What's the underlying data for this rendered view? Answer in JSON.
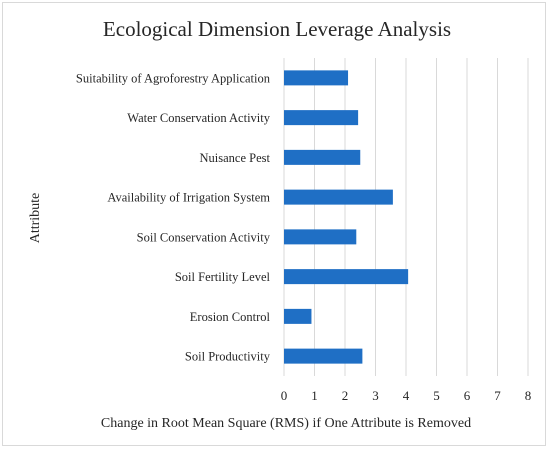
{
  "chart_data": {
    "type": "bar",
    "orientation": "horizontal",
    "title": "Ecological Dimension Leverage Analysis",
    "xlabel": "Change in Root Mean Square (RMS) if One Attribute is Removed",
    "ylabel": "Attribute",
    "categories": [
      "Suitability of Agroforestry Application",
      "Water Conservation Activity",
      "Nuisance Pest",
      "Availability of Irrigation System",
      "Soil Conservation Activity",
      "Soil Fertility Level",
      "Erosion Control",
      "Soil Productivity"
    ],
    "values": [
      2.1,
      2.43,
      2.5,
      3.57,
      2.37,
      4.07,
      0.9,
      2.57
    ],
    "xlim": [
      0,
      8
    ],
    "xticks": [
      "0",
      "1",
      "2",
      "3",
      "4",
      "5",
      "6",
      "7",
      "8"
    ],
    "grid": "vertical",
    "bar_color": "#1f6fc5"
  }
}
